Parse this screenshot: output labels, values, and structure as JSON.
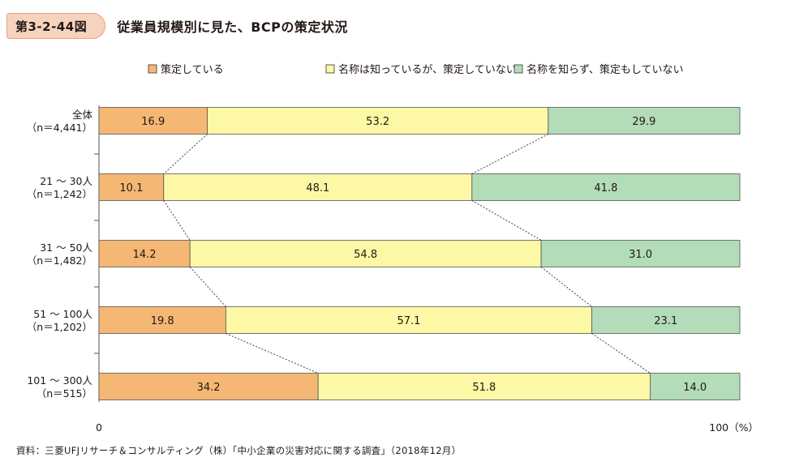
{
  "figure": {
    "number": "第3-2-44図",
    "title": "従業員規模別に見た、BCPの策定状況"
  },
  "source": "資料：三菱UFJリサーチ＆コンサルティング（株）「中小企業の災害対応に関する調査」（2018年12月）",
  "chart_data": {
    "type": "bar",
    "orientation": "horizontal",
    "stacked": "100%",
    "categories": [
      {
        "label": "全体",
        "n": "（n＝4,441）"
      },
      {
        "label": "21 ～ 30人",
        "n": "（n＝1,242）"
      },
      {
        "label": "31 ～ 50人",
        "n": "（n＝1,482）"
      },
      {
        "label": "51 ～ 100人",
        "n": "（n＝1,202）"
      },
      {
        "label": "101 ～ 300人",
        "n": "（n＝515）"
      }
    ],
    "series": [
      {
        "name": "策定している",
        "color": "#f5b774",
        "values": [
          16.9,
          10.1,
          14.2,
          19.8,
          34.2
        ]
      },
      {
        "name": "名称は知っているが、策定していない",
        "color": "#fdf8a6",
        "values": [
          53.2,
          48.1,
          54.8,
          57.1,
          51.8
        ]
      },
      {
        "name": "名称を知らず、策定もしていない",
        "color": "#b3dcb8",
        "values": [
          29.9,
          41.8,
          31.0,
          23.1,
          14.0
        ]
      }
    ],
    "value_labels": [
      [
        "16.9",
        "53.2",
        "29.9"
      ],
      [
        "10.1",
        "48.1",
        "41.8"
      ],
      [
        "14.2",
        "54.8",
        "31.0"
      ],
      [
        "19.8",
        "57.1",
        "23.1"
      ],
      [
        "34.2",
        "51.8",
        "14.0"
      ]
    ],
    "xlim": [
      0,
      100
    ],
    "x_tick_labels": [
      "0",
      "100（%）"
    ],
    "legend_position": "top",
    "connector_lines": "dotted"
  }
}
